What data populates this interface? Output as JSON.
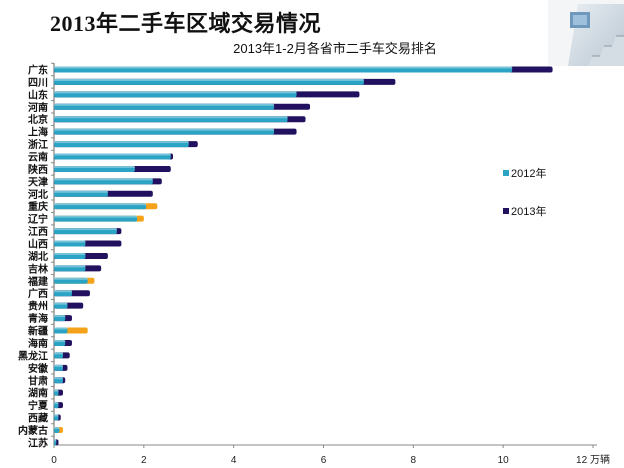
{
  "slide": {
    "title": "2013年二手车区域交易情况"
  },
  "chart_data": {
    "type": "bar",
    "orientation": "horizontal",
    "stacked": "overlay",
    "title": "2013年1-2月各省市二手车交易排名",
    "xlabel": "",
    "ylabel": "",
    "xlim": [
      0,
      12
    ],
    "x_ticks": [
      "0",
      "2",
      "4",
      "6",
      "8",
      "10",
      "12 万辆"
    ],
    "grid": false,
    "legend_position": "right",
    "colors": {
      "2012年": "#2aa3c4",
      "2013年": "#22115e",
      "2012_positive_growth_dip": "#f5a21b"
    },
    "categories": [
      "广东",
      "四川",
      "山东",
      "河南",
      "北京",
      "上海",
      "浙江",
      "云南",
      "陕西",
      "天津",
      "河北",
      "重庆",
      "辽宁",
      "江西",
      "山西",
      "湖北",
      "吉林",
      "福建",
      "广西",
      "贵州",
      "青海",
      "新疆",
      "海南",
      "黑龙江",
      "安徽",
      "甘肃",
      "湖南",
      "宁夏",
      "西藏",
      "内蒙古",
      "江苏"
    ],
    "series": [
      {
        "name": "2012年",
        "values": [
          10.2,
          6.9,
          5.4,
          4.9,
          5.2,
          4.9,
          3.0,
          2.6,
          1.8,
          2.2,
          1.2,
          2.3,
          2.0,
          1.4,
          0.7,
          0.7,
          0.7,
          0.9,
          0.4,
          0.3,
          0.25,
          0.75,
          0.25,
          0.2,
          0.2,
          0.2,
          0.1,
          0.1,
          0.1,
          0.2,
          0.05
        ]
      },
      {
        "name": "2013年",
        "values": [
          11.1,
          7.6,
          6.8,
          5.7,
          5.6,
          5.4,
          3.2,
          2.65,
          2.6,
          2.4,
          2.2,
          2.05,
          1.85,
          1.5,
          1.5,
          1.2,
          1.05,
          0.75,
          0.8,
          0.65,
          0.4,
          0.3,
          0.4,
          0.35,
          0.3,
          0.25,
          0.2,
          0.2,
          0.15,
          0.12,
          0.1
        ]
      }
    ]
  }
}
